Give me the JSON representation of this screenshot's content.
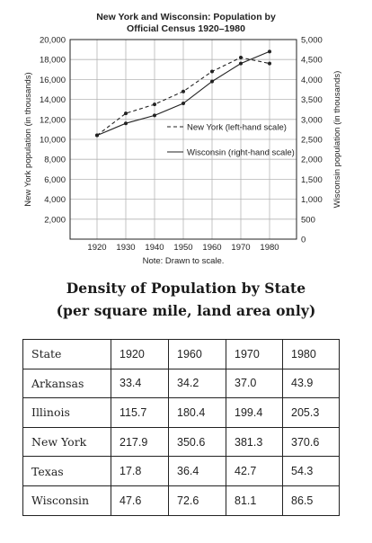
{
  "chart_data": {
    "type": "line",
    "title_line1": "New York and Wisconsin: Population by",
    "title_line2": "Official Census 1920–1980",
    "x": [
      1920,
      1930,
      1940,
      1950,
      1960,
      1970,
      1980
    ],
    "x_tick_labels": [
      "1920",
      "1930",
      "1940",
      "1950",
      "1960",
      "1970",
      "1980"
    ],
    "xlim": [
      1920,
      1980
    ],
    "ylabel_left": "New York population (in thousands)",
    "ylabel_right": "Wisconsin population (in thousands)",
    "ylim_left": [
      0,
      20000
    ],
    "ylim_right": [
      0,
      5000
    ],
    "y_left_tick_labels": [
      "2,000",
      "4,000",
      "6,000",
      "8,000",
      "10,000",
      "12,000",
      "14,000",
      "16,000",
      "18,000",
      "20,000"
    ],
    "y_right_tick_labels": [
      "0",
      "500",
      "1,000",
      "1,500",
      "2,000",
      "2,500",
      "3,000",
      "3,500",
      "4,000",
      "4,500",
      "5,000"
    ],
    "grid": true,
    "legend_position": "center-right",
    "series": [
      {
        "name": "New York (left-hand scale)",
        "axis": "left",
        "style": "dashed",
        "values": [
          10400,
          12600,
          13500,
          14800,
          16800,
          18200,
          17600
        ]
      },
      {
        "name": "Wisconsin (right-hand scale)",
        "axis": "right",
        "style": "solid",
        "values": [
          2600,
          2900,
          3100,
          3400,
          3950,
          4400,
          4700
        ]
      }
    ],
    "note": "Note: Drawn to scale."
  },
  "table": {
    "title_line1": "Density of Population by State",
    "title_line2": "(per square mile, land area only)",
    "headers": [
      "State",
      "1920",
      "1960",
      "1970",
      "1980"
    ],
    "rows": [
      [
        "Arkansas",
        "33.4",
        "34.2",
        "37.0",
        "43.9"
      ],
      [
        "Illinois",
        "115.7",
        "180.4",
        "199.4",
        "205.3"
      ],
      [
        "New York",
        "217.9",
        "350.6",
        "381.3",
        "370.6"
      ],
      [
        "Texas",
        "17.8",
        "36.4",
        "42.7",
        "54.3"
      ],
      [
        "Wisconsin",
        "47.6",
        "72.6",
        "81.1",
        "86.5"
      ]
    ]
  }
}
